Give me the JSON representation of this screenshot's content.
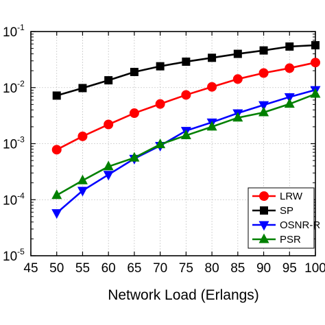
{
  "chart_data": {
    "type": "line",
    "title": "",
    "xlabel": "Network Load (Erlangs)",
    "ylabel": "",
    "x": [
      50,
      55,
      60,
      65,
      70,
      75,
      80,
      85,
      90,
      95,
      100
    ],
    "xlim": [
      45,
      100
    ],
    "xticks": [
      "45",
      "50",
      "55",
      "60",
      "65",
      "70",
      "75",
      "80",
      "85",
      "90",
      "95",
      "100"
    ],
    "yscale": "log",
    "ylim": [
      1e-05,
      0.1
    ],
    "yticks": [
      {
        "base": "10",
        "exp": "-5"
      },
      {
        "base": "10",
        "exp": "-4"
      },
      {
        "base": "10",
        "exp": "-3"
      },
      {
        "base": "10",
        "exp": "-2"
      },
      {
        "base": "10",
        "exp": "-1"
      }
    ],
    "grid": true,
    "legend_position": "bottom-right",
    "series": [
      {
        "name": "LRW",
        "color": "#ff0000",
        "marker": "circle",
        "values": [
          0.00078,
          0.00135,
          0.0022,
          0.0035,
          0.0051,
          0.0074,
          0.0103,
          0.0142,
          0.0182,
          0.0222,
          0.028
        ]
      },
      {
        "name": "SP",
        "color": "#000000",
        "marker": "square",
        "values": [
          0.0072,
          0.0098,
          0.0135,
          0.019,
          0.024,
          0.029,
          0.034,
          0.04,
          0.046,
          0.054,
          0.057
        ]
      },
      {
        "name": "OSNR-R",
        "color": "#0000ff",
        "marker": "triangle-down",
        "values": [
          5.8e-05,
          0.000145,
          0.00028,
          0.00054,
          0.00092,
          0.0017,
          0.0024,
          0.0035,
          0.0049,
          0.0068,
          0.0091
        ]
      },
      {
        "name": "PSR",
        "color": "#008000",
        "marker": "triangle-up",
        "values": [
          0.00012,
          0.00022,
          0.00039,
          0.00056,
          0.00097,
          0.0014,
          0.002,
          0.0029,
          0.0036,
          0.0051,
          0.0077
        ]
      }
    ]
  }
}
